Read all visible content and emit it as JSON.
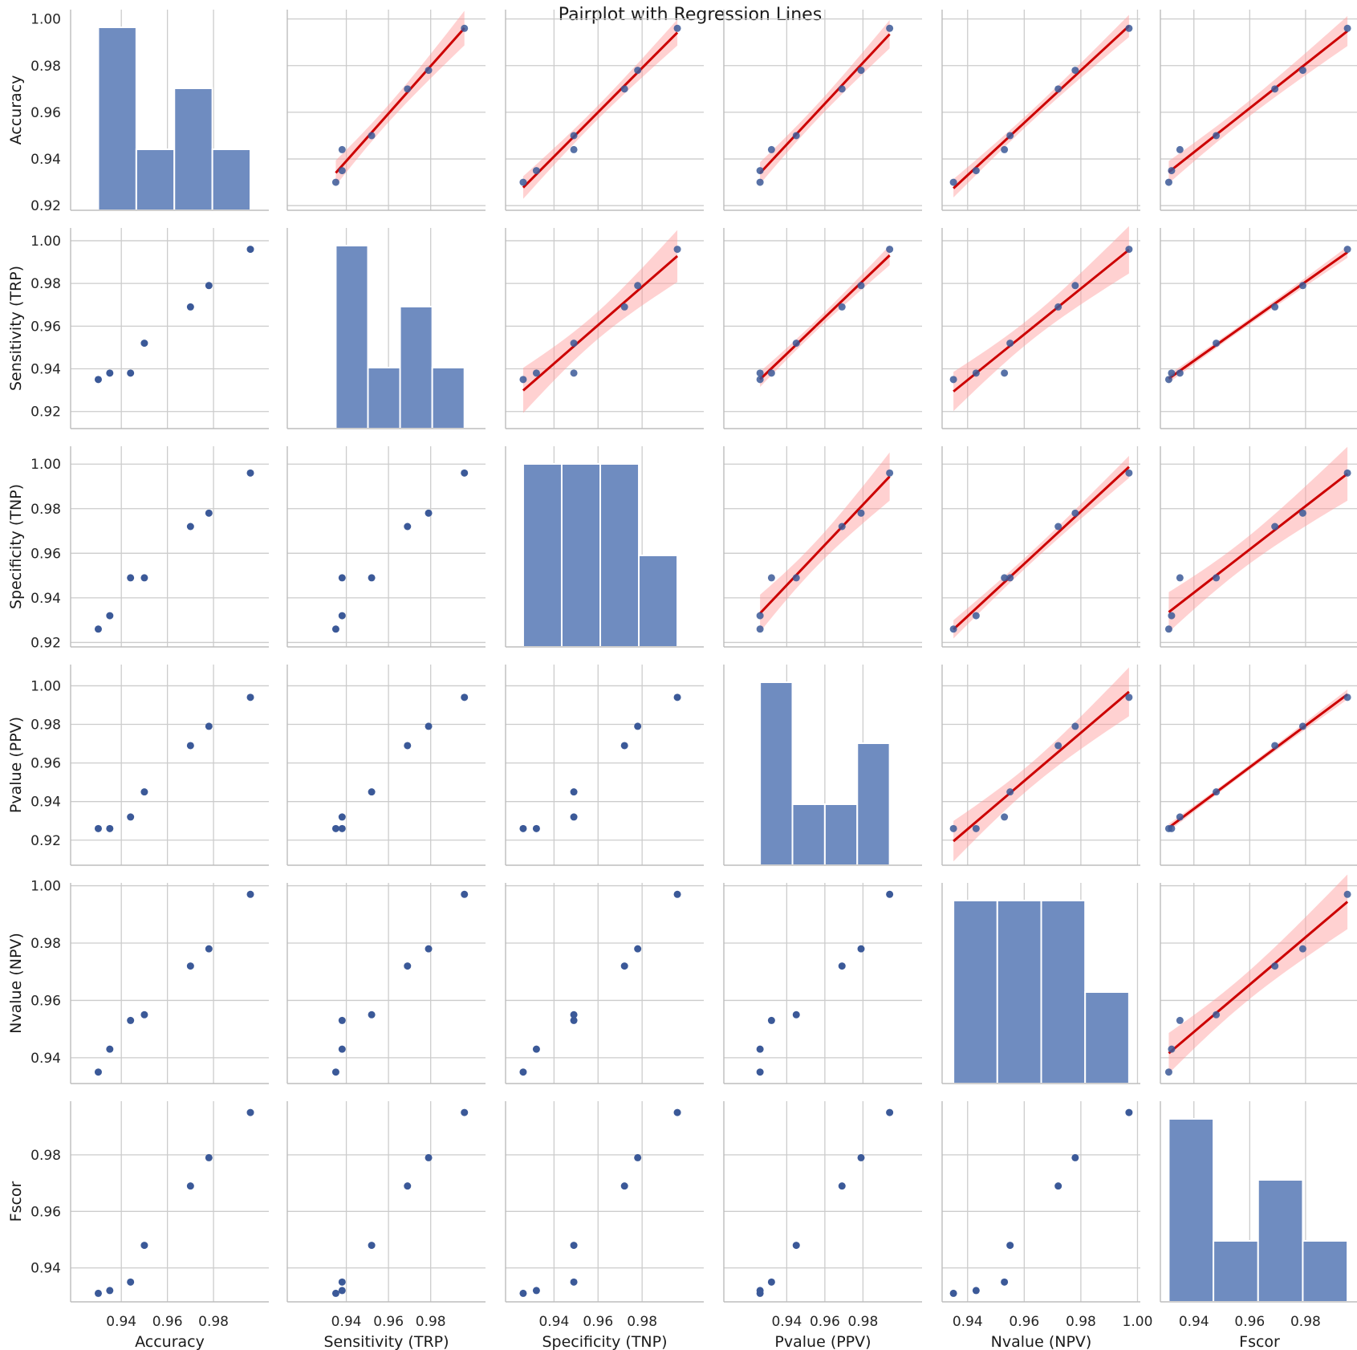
{
  "chart_data": {
    "type": "pairplot",
    "title": "Pairplot with Regression Lines",
    "variables": [
      {
        "label": "Accuracy",
        "lim": [
          0.918,
          1.004
        ],
        "ticks": [
          "0.92",
          "0.94",
          "0.96",
          "0.98",
          "1.00"
        ],
        "xticks": [
          "0.94",
          "0.96",
          "0.98"
        ]
      },
      {
        "label": "Sensitivity (TRP)",
        "lim": [
          0.912,
          1.006
        ],
        "ticks": [
          "0.92",
          "0.94",
          "0.96",
          "0.98",
          "1.00"
        ],
        "xticks": [
          "0.94",
          "0.96",
          "0.98"
        ]
      },
      {
        "label": "Specificity (TNP)",
        "lim": [
          0.918,
          1.008
        ],
        "ticks": [
          "0.92",
          "0.94",
          "0.96",
          "0.98",
          "1.00"
        ],
        "xticks": [
          "0.94",
          "0.96",
          "0.98"
        ]
      },
      {
        "label": "Pvalue (PPV)",
        "lim": [
          0.907,
          1.011
        ],
        "ticks": [
          "0.92",
          "0.94",
          "0.96",
          "0.98",
          "1.00"
        ],
        "xticks": [
          "0.94",
          "0.96",
          "0.98"
        ]
      },
      {
        "label": "Nvalue (NPV)",
        "lim": [
          0.931,
          1.001
        ],
        "ticks": [
          "0.94",
          "0.96",
          "0.98",
          "1.00"
        ],
        "xticks": [
          "0.94",
          "0.96",
          "0.98",
          "1.00"
        ]
      },
      {
        "label": "Fscor",
        "lim": [
          0.928,
          0.999
        ],
        "ticks": [
          "0.94",
          "0.96",
          "0.98"
        ],
        "xticks": [
          "0.94",
          "0.96",
          "0.98"
        ]
      }
    ],
    "rows": [
      {
        "accuracy": 0.93,
        "sensitivity": 0.935,
        "specificity": 0.926,
        "ppv": 0.926,
        "npv": 0.935,
        "fscor": 0.931
      },
      {
        "accuracy": 0.935,
        "sensitivity": 0.938,
        "specificity": 0.932,
        "ppv": 0.926,
        "npv": 0.943,
        "fscor": 0.932
      },
      {
        "accuracy": 0.944,
        "sensitivity": 0.938,
        "specificity": 0.949,
        "ppv": 0.932,
        "npv": 0.953,
        "fscor": 0.935
      },
      {
        "accuracy": 0.95,
        "sensitivity": 0.952,
        "specificity": 0.949,
        "ppv": 0.945,
        "npv": 0.955,
        "fscor": 0.948
      },
      {
        "accuracy": 0.97,
        "sensitivity": 0.969,
        "specificity": 0.972,
        "ppv": 0.969,
        "npv": 0.972,
        "fscor": 0.969
      },
      {
        "accuracy": 0.978,
        "sensitivity": 0.979,
        "specificity": 0.978,
        "ppv": 0.979,
        "npv": 0.978,
        "fscor": 0.979
      },
      {
        "accuracy": 0.996,
        "sensitivity": 0.996,
        "specificity": 0.996,
        "ppv": 0.994,
        "npv": 0.997,
        "fscor": 0.995
      }
    ],
    "diag": "hist",
    "upper": "scatter with linear regression line and 95% confidence band",
    "lower": "scatter",
    "histogram_bins": 4,
    "colors": {
      "points": "#3b5998",
      "bars": "#6f8cc0",
      "bar_edge": "#ffffff",
      "reg_line": "#cc0000",
      "ci_band": "#ff9999",
      "grid": "#cccccc",
      "axis": "#bdbdbd"
    },
    "grid": true
  }
}
